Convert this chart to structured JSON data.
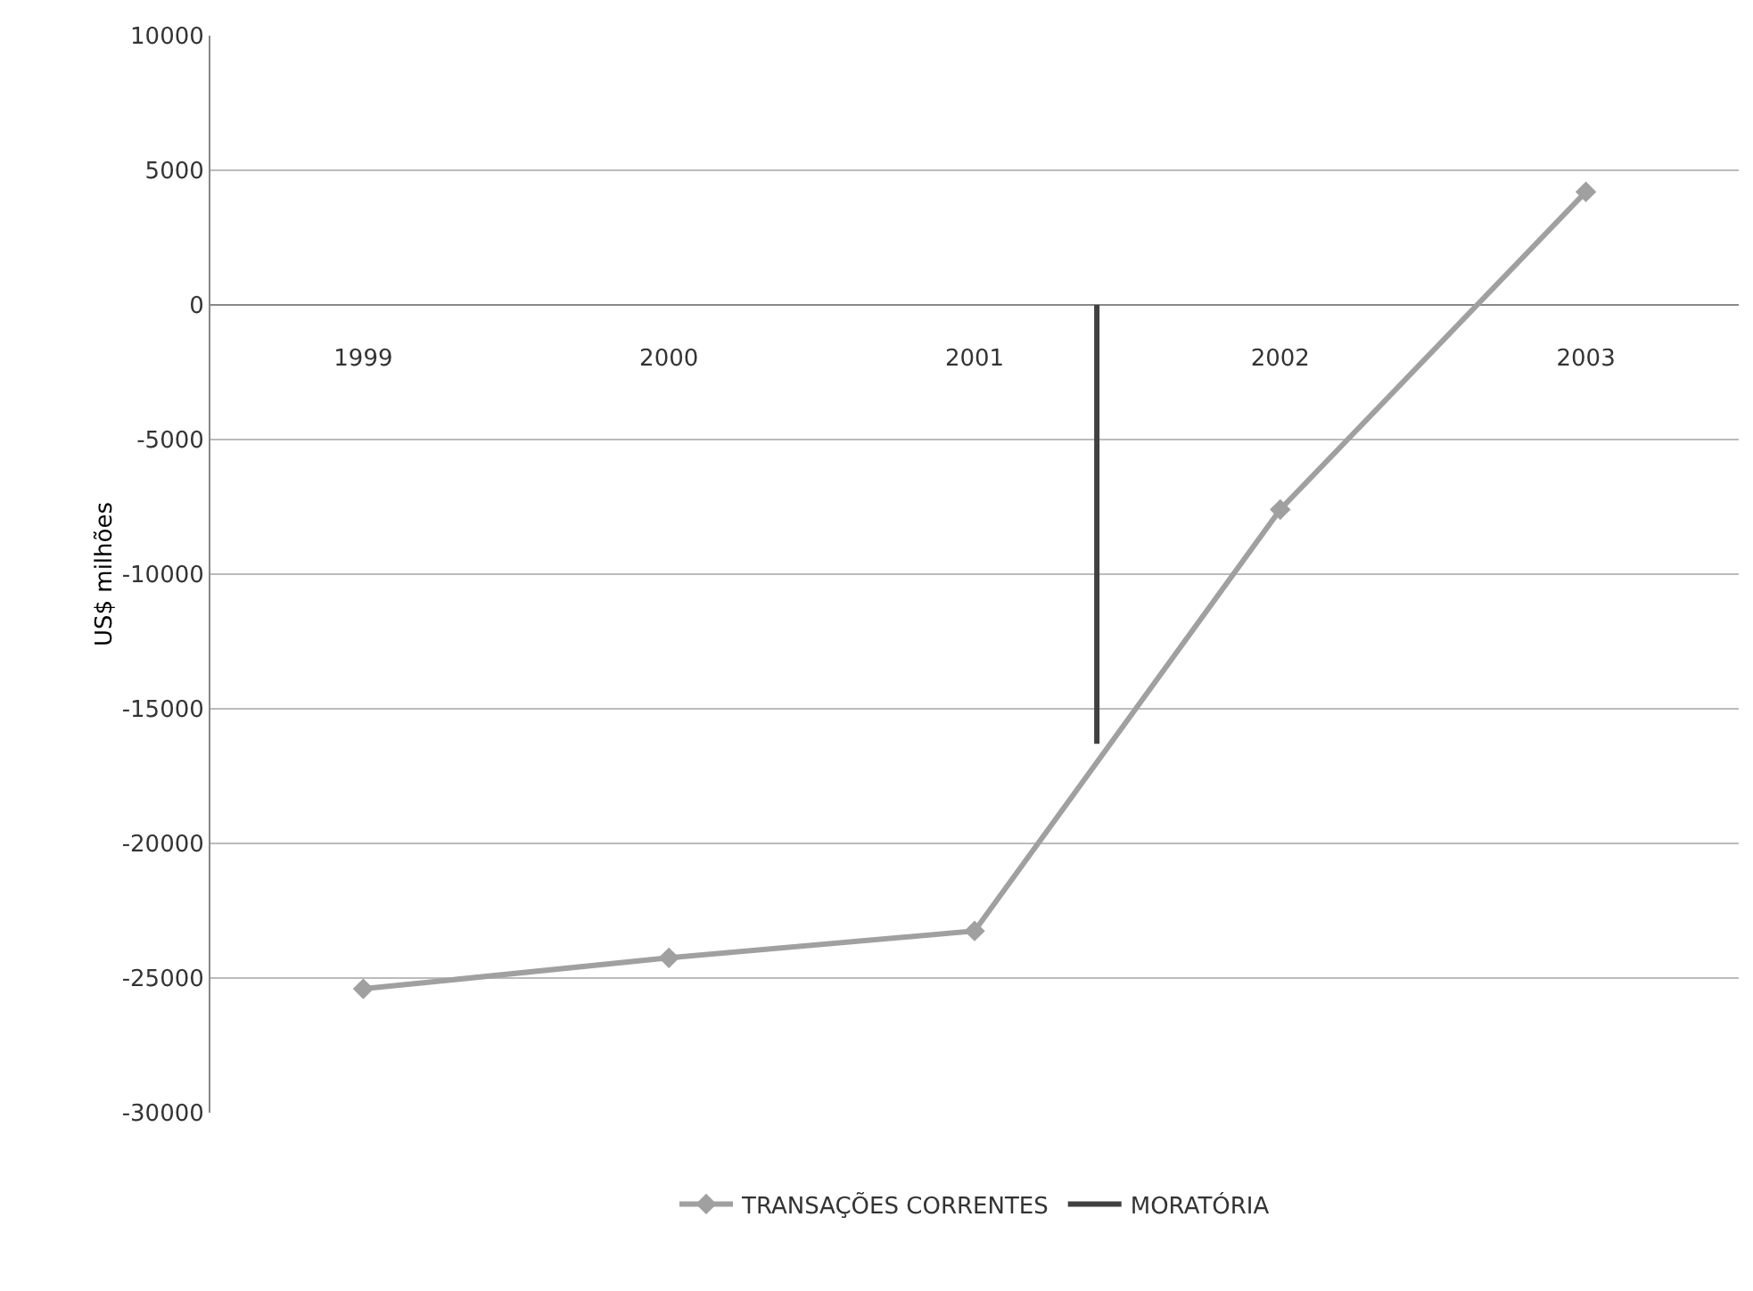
{
  "chart_data": {
    "type": "line",
    "ylabel": "US$ milhões",
    "x": [
      1999,
      2000,
      2001,
      2002,
      2003
    ],
    "xlim": [
      1998.5,
      2003.5
    ],
    "xticks": [
      1999,
      2000,
      2001,
      2002,
      2003
    ],
    "ylim": [
      -30000,
      10000
    ],
    "yticks": [
      -30000,
      -25000,
      -20000,
      -15000,
      -10000,
      -5000,
      0,
      5000,
      10000
    ],
    "series": [
      {
        "name": "TRANSAÇÕES CORRENTES",
        "color": "#a0a0a0",
        "values": [
          -25400,
          -24250,
          -23250,
          -7600,
          4200
        ],
        "marker": "diamond"
      },
      {
        "name": "MORATÓRIA",
        "color": "#404040",
        "x": [
          2001.4,
          2001.4
        ],
        "values": [
          0,
          -16300
        ],
        "marker": "none"
      }
    ],
    "grid": "y",
    "legend": "bottom",
    "line_style": "solid"
  }
}
